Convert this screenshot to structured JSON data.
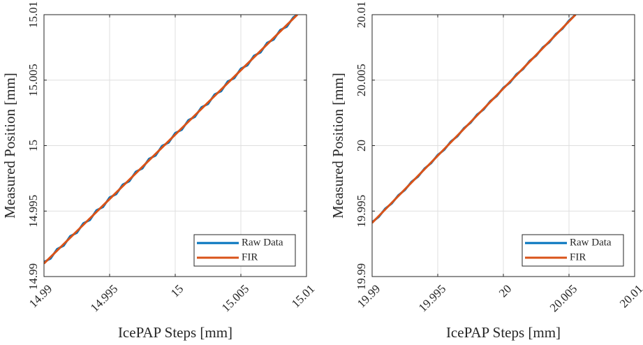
{
  "chart_data": [
    {
      "type": "line",
      "xlabel": "IcePAP Steps [mm]",
      "ylabel": "Measured Position [mm]",
      "xlim": [
        14.99,
        15.01
      ],
      "ylim": [
        14.99,
        15.01
      ],
      "xticks": [
        14.99,
        14.995,
        15,
        15.005,
        15.01
      ],
      "yticks": [
        14.99,
        14.995,
        15,
        15.005,
        15.01
      ],
      "grid": true,
      "legend": "lower right",
      "series": [
        {
          "name": "Raw Data",
          "color": "#0072bd",
          "x": [
            14.99,
            14.9905,
            14.991,
            14.9915,
            14.992,
            14.9925,
            14.993,
            14.9935,
            14.994,
            14.9945,
            14.995,
            14.9955,
            14.996,
            14.9965,
            14.997,
            14.9975,
            14.998,
            14.9985,
            14.999,
            14.9995,
            15.0,
            15.0005,
            15.001,
            15.0015,
            15.002,
            15.0025,
            15.003,
            15.0035,
            15.004,
            15.0045,
            15.005,
            15.0055,
            15.006,
            15.0065,
            15.007,
            15.0075,
            15.008,
            15.0085,
            15.009,
            15.0093
          ],
          "values": [
            14.99112,
            14.99137,
            14.9921,
            14.99236,
            14.99309,
            14.99334,
            14.99407,
            14.99432,
            14.99506,
            14.99531,
            14.99604,
            14.99629,
            14.99702,
            14.99728,
            14.99801,
            14.99826,
            14.99899,
            14.99924,
            14.99998,
            15.00023,
            15.00096,
            15.00121,
            15.00194,
            15.0022,
            15.00293,
            15.00318,
            15.00391,
            15.00416,
            15.0049,
            15.00515,
            15.00588,
            15.00613,
            15.00686,
            15.00712,
            15.00785,
            15.0081,
            15.00883,
            15.00908,
            15.0098,
            15.01
          ]
        },
        {
          "name": "FIR",
          "color": "#d95319",
          "x": [
            14.99,
            14.995,
            15.0,
            15.005,
            15.0093
          ],
          "values": [
            14.991,
            14.99592,
            15.00084,
            15.00576,
            15.01
          ]
        }
      ]
    },
    {
      "type": "line",
      "xlabel": "IcePAP Steps [mm]",
      "ylabel": "Measured Position [mm]",
      "xlim": [
        19.99,
        20.01
      ],
      "ylim": [
        19.99,
        20.01
      ],
      "xticks": [
        19.99,
        19.995,
        20,
        20.005,
        20.01
      ],
      "yticks": [
        19.99,
        19.995,
        20,
        20.005,
        20.01
      ],
      "grid": true,
      "legend": "lower right",
      "series": [
        {
          "name": "Raw Data",
          "color": "#0072bd",
          "x": [
            19.99,
            19.9905,
            19.991,
            19.9915,
            19.992,
            19.9925,
            19.993,
            19.9935,
            19.994,
            19.9945,
            19.995,
            19.9955,
            19.996,
            19.9965,
            19.997,
            19.9975,
            19.998,
            19.9985,
            19.999,
            19.9995,
            20.0,
            20.0005,
            20.001,
            20.0015,
            20.002,
            20.0025,
            20.003,
            20.0035,
            20.004,
            20.0045,
            20.005,
            20.0055
          ],
          "values": [
            19.99416,
            19.99455,
            19.99519,
            19.99558,
            19.99621,
            19.99661,
            19.99724,
            19.99763,
            19.99826,
            19.99866,
            19.99929,
            19.99968,
            20.00032,
            20.00071,
            20.00134,
            20.00174,
            20.00237,
            20.00276,
            20.00339,
            20.00379,
            20.00442,
            20.00481,
            20.00545,
            20.00584,
            20.00647,
            20.00687,
            20.0075,
            20.00789,
            20.00852,
            20.00892,
            20.00955,
            20.01
          ]
        },
        {
          "name": "FIR",
          "color": "#d95319",
          "x": [
            19.99,
            19.995,
            20.0,
            20.0055
          ],
          "values": [
            19.9941,
            19.99923,
            20.00436,
            20.01
          ]
        }
      ]
    }
  ]
}
